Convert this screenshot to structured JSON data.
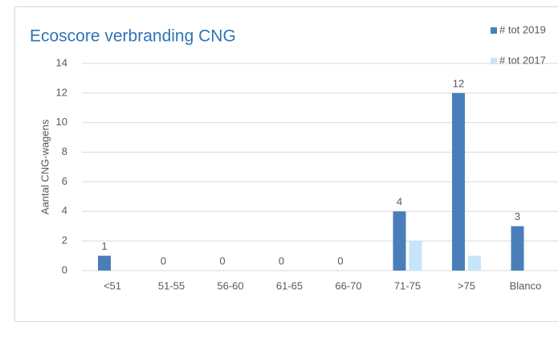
{
  "chart_data": {
    "type": "bar",
    "title": "Ecoscore verbranding CNG",
    "ylabel": "Aantal CNG-wagens",
    "categories": [
      "<51",
      "51-55",
      "56-60",
      "61-65",
      "66-70",
      "71-75",
      ">75",
      "Blanco"
    ],
    "series": [
      {
        "name": "# tot 2019",
        "color": "#4a7ebb",
        "values": [
          1,
          0,
          0,
          0,
          0,
          4,
          12,
          3
        ]
      },
      {
        "name": "# tot 2017",
        "color": "#c5e6fa",
        "values": [
          0,
          0,
          0,
          0,
          0,
          2,
          1,
          0
        ]
      }
    ],
    "ylim": [
      0,
      14
    ],
    "yticks": [
      0,
      2,
      4,
      6,
      8,
      10,
      12,
      14
    ],
    "grid": true,
    "legend": "right"
  }
}
